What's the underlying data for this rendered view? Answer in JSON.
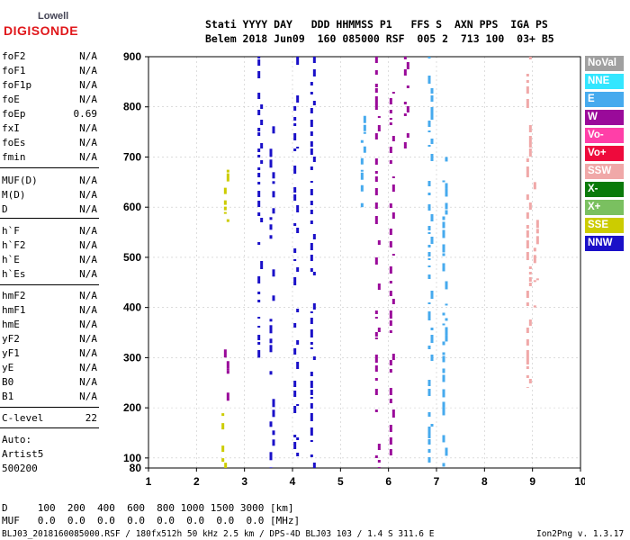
{
  "logo": {
    "line1": "Lowell",
    "line2": "DIGISONDE"
  },
  "header": {
    "labels": "Stati YYYY DAY   DDD HHMMSS P1   FFS S  AXN PPS  IGA PS",
    "values": "Belem 2018 Jun09  160 085000 RSF  005 2  713 100  03+ B5"
  },
  "params": [
    {
      "name": "foF2",
      "value": "N/A"
    },
    {
      "name": "foF1",
      "value": "N/A"
    },
    {
      "name": "foF1p",
      "value": "N/A"
    },
    {
      "name": "foE",
      "value": "N/A"
    },
    {
      "name": "foEp",
      "value": "0.69"
    },
    {
      "name": "fxI",
      "value": "N/A"
    },
    {
      "name": "foEs",
      "value": "N/A"
    },
    {
      "name": "fmin",
      "value": "N/A"
    },
    {
      "name": "MUF(D)",
      "value": "N/A"
    },
    {
      "name": "M(D)",
      "value": "N/A"
    },
    {
      "name": "D",
      "value": "N/A"
    },
    {
      "name": "h`F",
      "value": "N/A"
    },
    {
      "name": "h`F2",
      "value": "N/A"
    },
    {
      "name": "h`E",
      "value": "N/A"
    },
    {
      "name": "h`Es",
      "value": "N/A"
    },
    {
      "name": "hmF2",
      "value": "N/A"
    },
    {
      "name": "hmF1",
      "value": "N/A"
    },
    {
      "name": "hmE",
      "value": "N/A"
    },
    {
      "name": "yF2",
      "value": "N/A"
    },
    {
      "name": "yF1",
      "value": "N/A"
    },
    {
      "name": "yE",
      "value": "N/A"
    },
    {
      "name": "B0",
      "value": "N/A"
    },
    {
      "name": "B1",
      "value": "N/A"
    },
    {
      "name": "C-level",
      "value": "22"
    }
  ],
  "auto": {
    "title": "Auto:",
    "artist": "Artist5",
    "version": "500200"
  },
  "legend": [
    {
      "label": "NoVal",
      "bg": "#a0a0a0",
      "fg": "#ffffff"
    },
    {
      "label": "NNE",
      "bg": "#33e6ff",
      "fg": "#ffffff"
    },
    {
      "label": "E",
      "bg": "#46aaee",
      "fg": "#ffffff"
    },
    {
      "label": "W",
      "bg": "#9a0a9a",
      "fg": "#ffffff"
    },
    {
      "label": "Vo-",
      "bg": "#ff3fa8",
      "fg": "#ffffff"
    },
    {
      "label": "Vo+",
      "bg": "#ee0a3c",
      "fg": "#ffffff"
    },
    {
      "label": "SSW",
      "bg": "#f0a8a8",
      "fg": "#ffffff"
    },
    {
      "label": "X-",
      "bg": "#0a7a0a",
      "fg": "#ffffff"
    },
    {
      "label": "X+",
      "bg": "#7ac060",
      "fg": "#ffffff"
    },
    {
      "label": "SSE",
      "bg": "#cccc00",
      "fg": "#ffffff"
    },
    {
      "label": "NNW",
      "bg": "#1a10c8",
      "fg": "#ffffff"
    }
  ],
  "bottom": {
    "d_row": "D     100  200  400  600  800 1000 1500 3000 [km]",
    "muf_row": "MUF   0.0  0.0  0.0  0.0  0.0  0.0  0.0  0.0 [MHz]"
  },
  "footer": {
    "left": "BLJ03_2018160085000.RSF / 180fx512h 50 kHz 2.5 km / DPS-4D BLJ03 103 / 1.4 S 311.6 E",
    "right": "Ion2Png v. 1.3.17"
  },
  "chart_data": {
    "type": "scatter",
    "x_ticks": [
      "1",
      "2",
      "3",
      "4",
      "5",
      "6",
      "7",
      "8",
      "9",
      "10"
    ],
    "y_ticks": [
      "80",
      "100",
      "200",
      "300",
      "400",
      "500",
      "600",
      "700",
      "800",
      "900"
    ],
    "xlim": [
      1,
      10
    ],
    "ylim": [
      80,
      900
    ],
    "series": [
      {
        "color": "#1a10c8",
        "columns": [
          {
            "x": 3.3,
            "y": [
              300,
              900
            ]
          },
          {
            "x": 3.55,
            "y": [
              80,
              790
            ]
          },
          {
            "x": 4.05,
            "y": [
              100,
              900
            ]
          },
          {
            "x": 4.4,
            "y": [
              80,
              900
            ]
          }
        ]
      },
      {
        "color": "#9a0a9a",
        "columns": [
          {
            "x": 2.6,
            "y": [
              200,
              320
            ]
          },
          {
            "x": 5.75,
            "y": [
              80,
              900
            ]
          },
          {
            "x": 6.05,
            "y": [
              80,
              830
            ]
          },
          {
            "x": 6.35,
            "y": [
              700,
              900
            ]
          }
        ]
      },
      {
        "color": "#46aaee",
        "columns": [
          {
            "x": 6.85,
            "y": [
              80,
              900
            ]
          },
          {
            "x": 7.15,
            "y": [
              80,
              700
            ]
          },
          {
            "x": 5.45,
            "y": [
              600,
              800
            ]
          }
        ]
      },
      {
        "color": "#cccc00",
        "columns": [
          {
            "x": 2.55,
            "y": [
              80,
              200
            ]
          },
          {
            "x": 2.6,
            "y": [
              570,
              680
            ]
          }
        ]
      },
      {
        "color": "#f0a8a8",
        "columns": [
          {
            "x": 8.9,
            "y": [
              240,
              900
            ]
          },
          {
            "x": 9.05,
            "y": [
              400,
              650
            ]
          }
        ]
      }
    ]
  }
}
